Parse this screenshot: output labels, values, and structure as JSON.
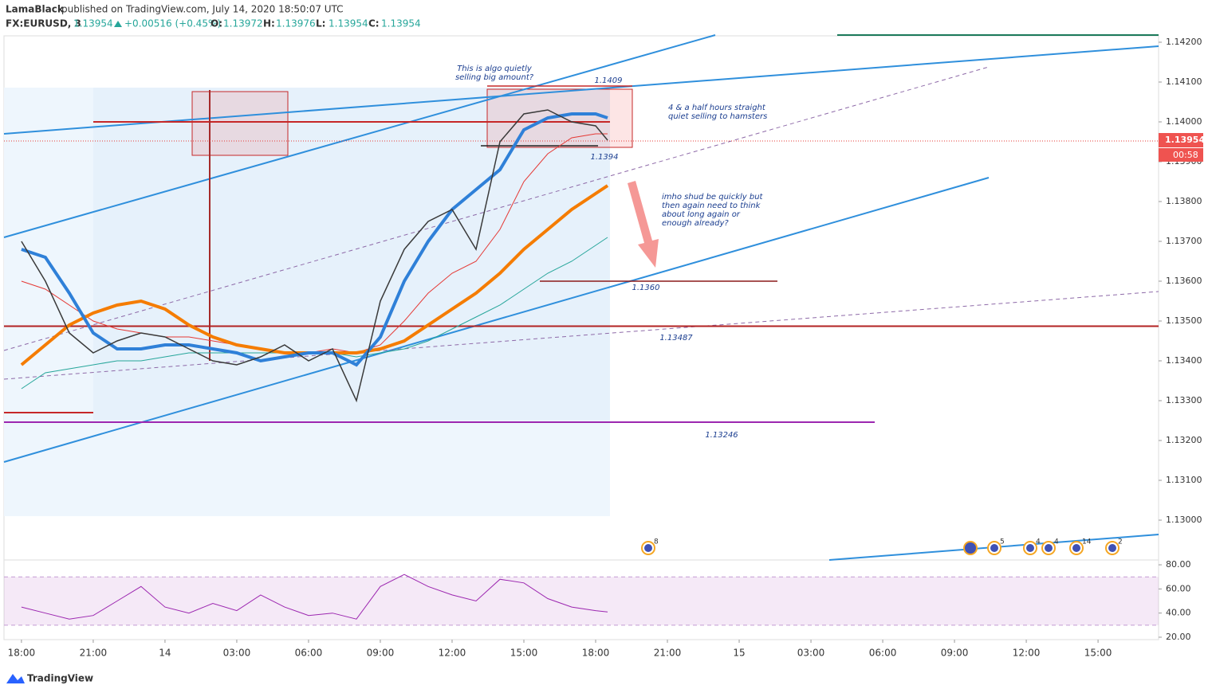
{
  "chart_data": {
    "type": "line",
    "author": "LamaBlack",
    "published": "published on TradingView.com, July 14, 2020 18:50:07 UTC",
    "symbol": "FX:EURUSD, 3",
    "last_price": 1.13954,
    "change": "+0.00516 (+0.45%)",
    "ohlc": [
      {
        "label": "O:",
        "value": 1.13972
      },
      {
        "label": "H:",
        "value": 1.13976
      },
      {
        "label": "L:",
        "value": 1.13954
      },
      {
        "label": "C:",
        "value": 1.13954
      }
    ],
    "countdown": "00:58",
    "x": [
      0,
      1,
      2,
      3,
      4,
      5,
      6,
      7,
      8,
      9,
      10,
      11,
      12,
      13,
      14,
      15,
      16,
      17,
      18,
      19,
      20,
      21,
      22,
      23,
      24,
      24.5
    ],
    "xlim": [
      -0.73,
      47.53
    ],
    "xticks": [
      {
        "value": 0,
        "label": "18:00"
      },
      {
        "value": 3,
        "label": "21:00"
      },
      {
        "value": 6,
        "label": "14"
      },
      {
        "value": 9,
        "label": "03:00"
      },
      {
        "value": 12,
        "label": "06:00"
      },
      {
        "value": 15,
        "label": "09:00"
      },
      {
        "value": 18,
        "label": "12:00"
      },
      {
        "value": 21,
        "label": "15:00"
      },
      {
        "value": 24,
        "label": "18:00"
      },
      {
        "value": 27,
        "label": "21:00"
      },
      {
        "value": 30,
        "label": "15"
      },
      {
        "value": 33,
        "label": "03:00"
      },
      {
        "value": 36,
        "label": "06:00"
      },
      {
        "value": 39,
        "label": "09:00"
      },
      {
        "value": 42,
        "label": "12:00"
      },
      {
        "value": 45,
        "label": "15:00"
      }
    ],
    "ylim": [
      1.129,
      1.14216
    ],
    "yticks": [
      {
        "value": 1.13,
        "label": "1.13000"
      },
      {
        "value": 1.131,
        "label": "1.13100"
      },
      {
        "value": 1.132,
        "label": "1.13200"
      },
      {
        "value": 1.133,
        "label": "1.13300"
      },
      {
        "value": 1.134,
        "label": "1.13400"
      },
      {
        "value": 1.135,
        "label": "1.13500"
      },
      {
        "value": 1.136,
        "label": "1.13600"
      },
      {
        "value": 1.137,
        "label": "1.13700"
      },
      {
        "value": 1.138,
        "label": "1.13800"
      },
      {
        "value": 1.139,
        "label": "1.13900"
      },
      {
        "value": 1.14,
        "label": "1.14000"
      },
      {
        "value": 1.141,
        "label": "1.14100"
      },
      {
        "value": 1.142,
        "label": "1.14200"
      }
    ],
    "series": [
      {
        "color": "#26a69a",
        "values": [
          1.1333,
          1.1337,
          1.1338,
          1.1339,
          1.134,
          1.134,
          1.1341,
          1.1342,
          1.1342,
          1.1342,
          1.1342,
          1.1342,
          1.1342,
          1.1342,
          1.1341,
          1.1342,
          1.1343,
          1.1345,
          1.1348,
          1.1351,
          1.1354,
          1.1358,
          1.1362,
          1.1365,
          1.1369,
          1.1371
        ]
      },
      {
        "color": "#e53935",
        "values": [
          1.136,
          1.1358,
          1.1354,
          1.135,
          1.1348,
          1.1347,
          1.1346,
          1.1346,
          1.1345,
          1.1344,
          1.1343,
          1.1342,
          1.1342,
          1.1343,
          1.1342,
          1.1344,
          1.135,
          1.1357,
          1.1362,
          1.1365,
          1.1373,
          1.1385,
          1.1392,
          1.1396,
          1.1397,
          1.1397
        ]
      },
      {
        "color": "#f57c00",
        "values": [
          1.1339,
          1.1344,
          1.1349,
          1.1352,
          1.1354,
          1.1355,
          1.1353,
          1.1349,
          1.1346,
          1.1344,
          1.1343,
          1.1342,
          1.1342,
          1.1342,
          1.1342,
          1.1343,
          1.1345,
          1.1349,
          1.1353,
          1.1357,
          1.1362,
          1.1368,
          1.1373,
          1.1378,
          1.1382,
          1.1384
        ]
      },
      {
        "color": "#2f80d8",
        "values": [
          1.1368,
          1.1366,
          1.1357,
          1.1347,
          1.1343,
          1.1343,
          1.1344,
          1.1344,
          1.1343,
          1.1342,
          1.134,
          1.1341,
          1.1342,
          1.1342,
          1.1339,
          1.1346,
          1.136,
          1.137,
          1.1378,
          1.1383,
          1.1388,
          1.1398,
          1.1401,
          1.1402,
          1.1402,
          1.1401
        ]
      },
      {
        "color": "#3a3a3a",
        "values": [
          1.137,
          1.136,
          1.1347,
          1.1342,
          1.1345,
          1.1347,
          1.1346,
          1.1343,
          1.134,
          1.1339,
          1.1341,
          1.1344,
          1.134,
          1.1343,
          1.133,
          1.1355,
          1.1368,
          1.1375,
          1.1378,
          1.1368,
          1.1395,
          1.1402,
          1.1403,
          1.14,
          1.1399,
          1.13954
        ]
      }
    ],
    "levels": [
      {
        "value": 1.1409,
        "label": "1.1409"
      },
      {
        "value": 1.1394,
        "label": "1.1394"
      },
      {
        "value": 1.136,
        "label": "1.1360"
      },
      {
        "value": 1.13487,
        "label": "1.13487"
      },
      {
        "value": 1.13246,
        "label": "1.13246"
      }
    ],
    "annotations": [
      [
        "This is algo quietly",
        "selling big amount?"
      ],
      [
        "4 & a half hours straight",
        "quiet selling to hamsters"
      ],
      [
        "imho shud be quickly but",
        "then again need to think",
        "about long again or",
        "enough already?"
      ]
    ],
    "events": [
      8,
      5,
      4,
      4,
      14,
      2
    ],
    "rsi": {
      "color": "#9c27b0",
      "values": [
        45,
        40,
        35,
        38,
        50,
        62,
        45,
        40,
        48,
        42,
        55,
        45,
        38,
        40,
        35,
        62,
        72,
        62,
        55,
        50,
        68,
        65,
        52,
        45,
        42,
        41
      ],
      "ylim": [
        18,
        84
      ],
      "band": [
        30,
        70
      ],
      "yticks": [
        {
          "value": 20,
          "label": "20.00"
        },
        {
          "value": 40,
          "label": "40.00"
        },
        {
          "value": 60,
          "label": "60.00"
        },
        {
          "value": 80,
          "label": "80.00"
        }
      ]
    },
    "brand": "TradingView"
  }
}
